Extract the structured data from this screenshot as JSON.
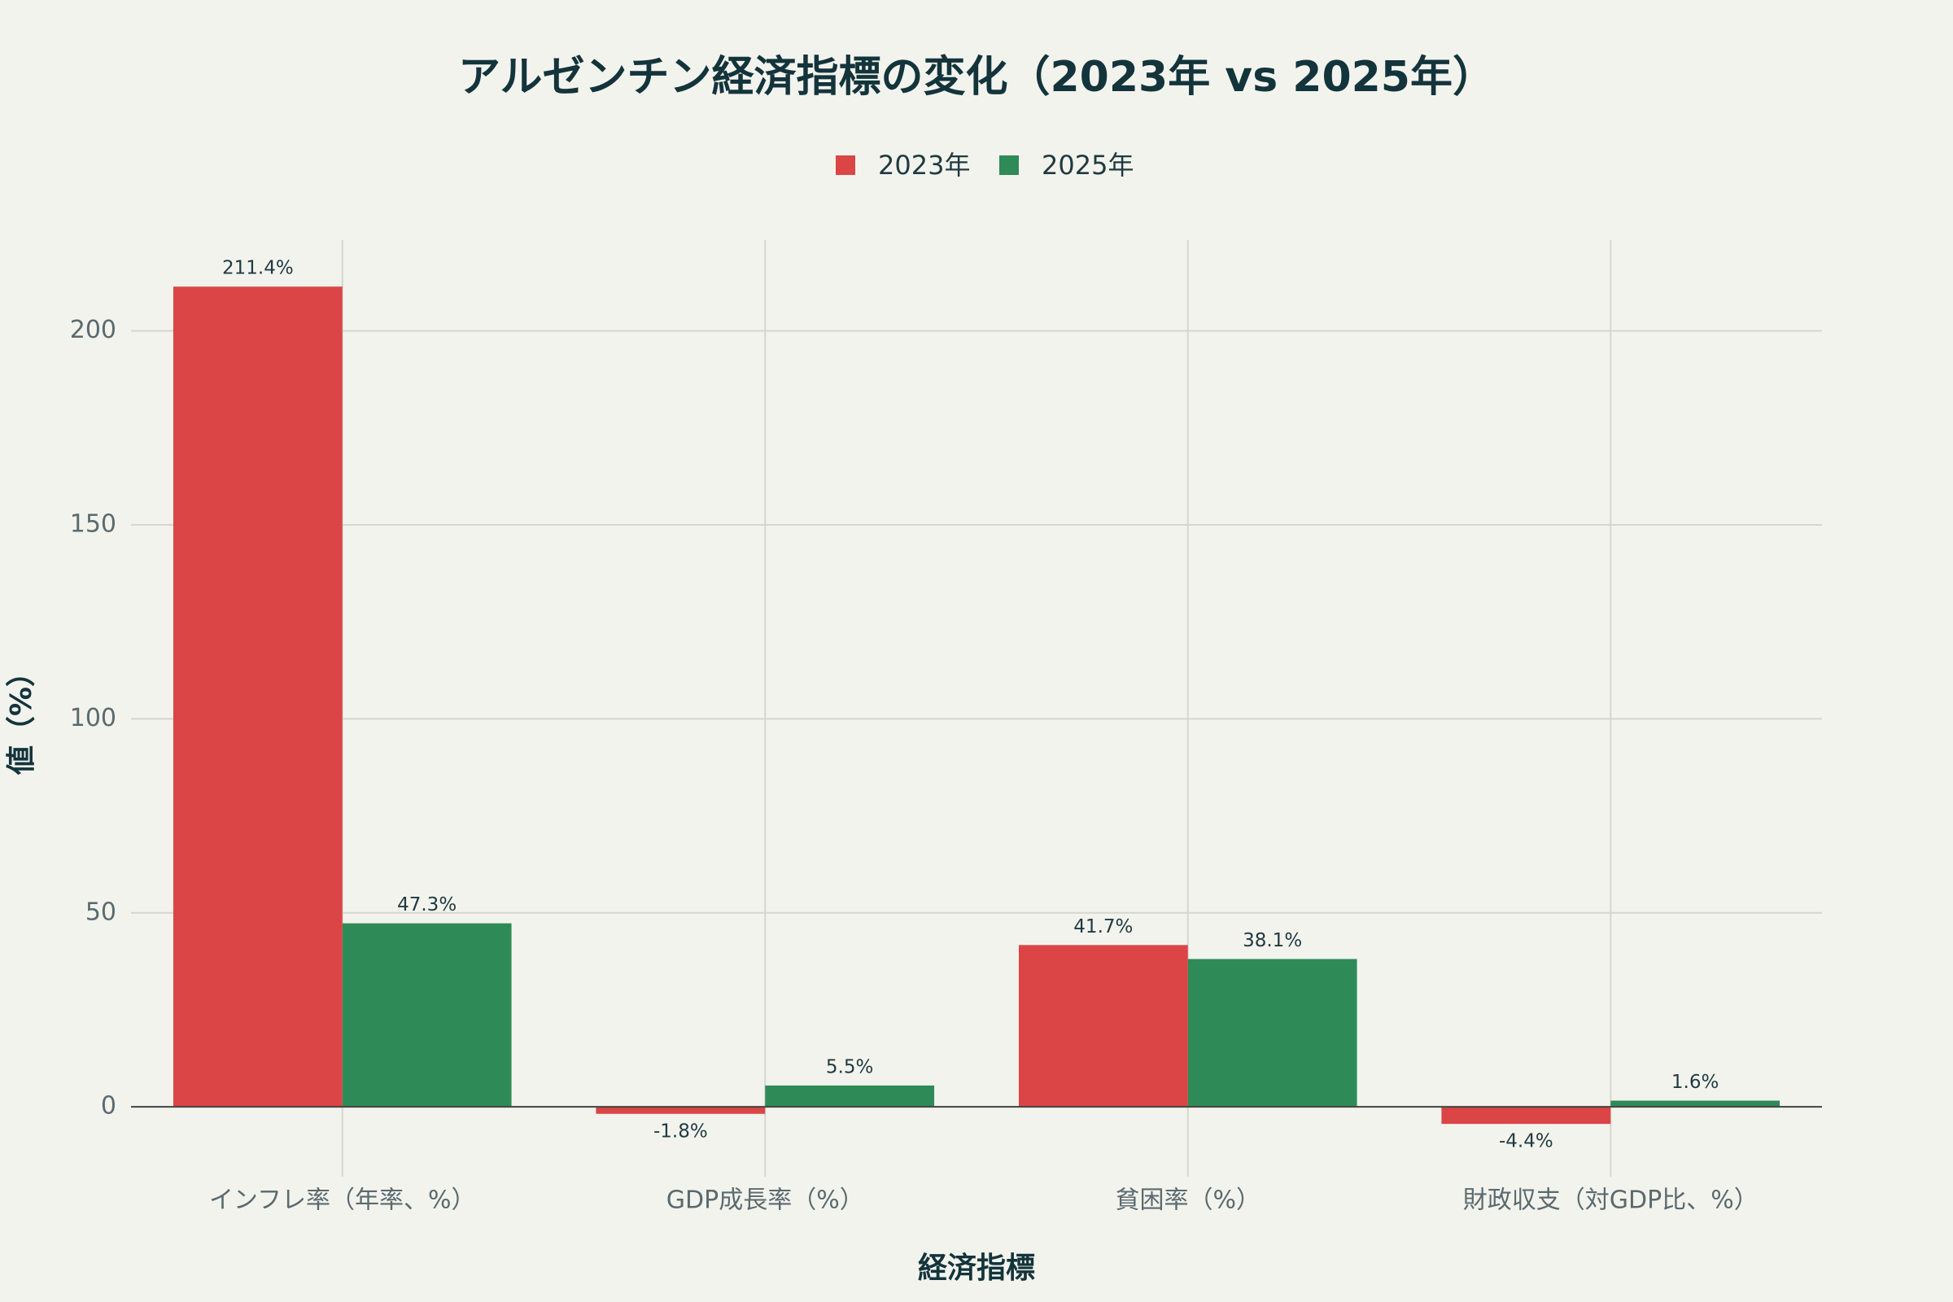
{
  "chart_data": {
    "type": "bar",
    "title": "アルゼンチン経済指標の変化（2023年 vs 2025年）",
    "x_label": "経済指標",
    "y_label": "値（%）",
    "categories": [
      "インフレ率（年率、%）",
      "GDP成長率（%）",
      "貧困率（%）",
      "財政収支（対GDP比、%）"
    ],
    "series": [
      {
        "name": "2023年",
        "color": "#db4545",
        "values": [
          211.4,
          -1.8,
          41.7,
          -4.4
        ],
        "value_labels": [
          "211.4%",
          "-1.8%",
          "41.7%",
          "-4.4%"
        ]
      },
      {
        "name": "2025年",
        "color": "#2e8b57",
        "values": [
          47.3,
          5.5,
          38.1,
          1.6
        ],
        "value_labels": [
          "47.3%",
          "5.5%",
          "38.1%",
          "1.6%"
        ]
      }
    ],
    "ylim": [
      -18,
      223.4
    ],
    "yticks": [
      0,
      50,
      100,
      150,
      200
    ],
    "grid": true,
    "legend": "top"
  }
}
